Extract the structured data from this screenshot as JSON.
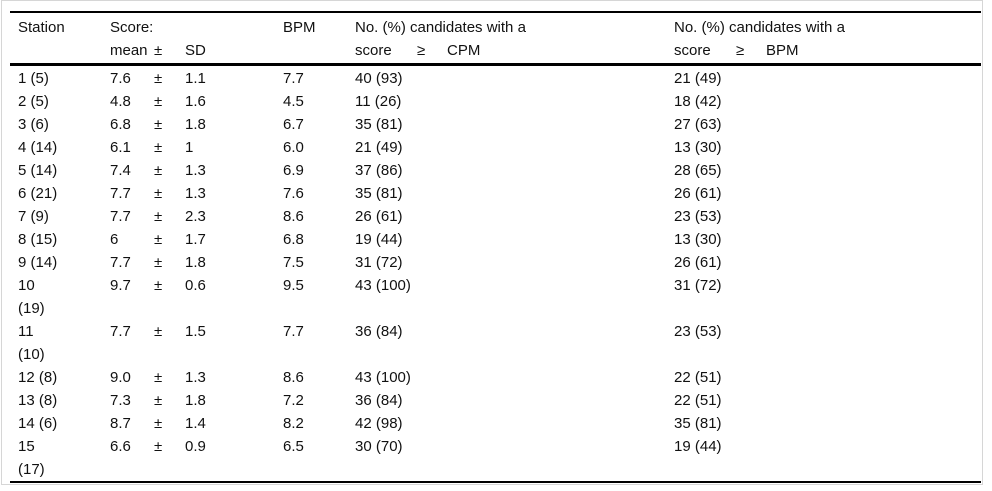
{
  "table": {
    "header": {
      "station": "Station",
      "score_line1": "Score:",
      "score_mean": "mean",
      "pm_symbol": "±",
      "score_sd": "SD",
      "bpm": "BPM",
      "count_line1": "No. (%) candidates with a",
      "count_score": "score",
      "ge_symbol": "≥",
      "cpm_ref": "CPM",
      "bpm_ref": "BPM"
    },
    "rows": [
      {
        "station": "1 (5)",
        "station_line2": "",
        "mean": "7.6",
        "sd": "1.1",
        "bpm": "7.7",
        "cpm_count": "40 (93)",
        "bpm_count": "21 (49)"
      },
      {
        "station": "2 (5)",
        "station_line2": "",
        "mean": "4.8",
        "sd": "1.6",
        "bpm": "4.5",
        "cpm_count": "11 (26)",
        "bpm_count": "18 (42)"
      },
      {
        "station": "3 (6)",
        "station_line2": "",
        "mean": "6.8",
        "sd": "1.8",
        "bpm": "6.7",
        "cpm_count": "35 (81)",
        "bpm_count": "27 (63)"
      },
      {
        "station": "4 (14)",
        "station_line2": "",
        "mean": "6.1",
        "sd": "1",
        "bpm": "6.0",
        "cpm_count": "21 (49)",
        "bpm_count": "13 (30)"
      },
      {
        "station": "5 (14)",
        "station_line2": "",
        "mean": "7.4",
        "sd": "1.3",
        "bpm": "6.9",
        "cpm_count": "37 (86)",
        "bpm_count": "28 (65)"
      },
      {
        "station": "6 (21)",
        "station_line2": "",
        "mean": "7.7",
        "sd": "1.3",
        "bpm": "7.6",
        "cpm_count": "35 (81)",
        "bpm_count": "26 (61)"
      },
      {
        "station": "7 (9)",
        "station_line2": "",
        "mean": "7.7",
        "sd": "2.3",
        "bpm": "8.6",
        "cpm_count": "26 (61)",
        "bpm_count": "23 (53)"
      },
      {
        "station": "8 (15)",
        "station_line2": "",
        "mean": "6",
        "sd": "1.7",
        "bpm": "6.8",
        "cpm_count": "19 (44)",
        "bpm_count": "13 (30)"
      },
      {
        "station": "9 (14)",
        "station_line2": "",
        "mean": "7.7",
        "sd": "1.8",
        "bpm": "7.5",
        "cpm_count": "31 (72)",
        "bpm_count": "26 (61)"
      },
      {
        "station": "10",
        "station_line2": "(19)",
        "mean": "9.7",
        "sd": "0.6",
        "bpm": "9.5",
        "cpm_count": "43 (100)",
        "bpm_count": "31 (72)"
      },
      {
        "station": "11",
        "station_line2": "(10)",
        "mean": "7.7",
        "sd": "1.5",
        "bpm": "7.7",
        "cpm_count": "36 (84)",
        "bpm_count": "23 (53)"
      },
      {
        "station": "12 (8)",
        "station_line2": "",
        "mean": "9.0",
        "sd": "1.3",
        "bpm": "8.6",
        "cpm_count": "43 (100)",
        "bpm_count": "22 (51)"
      },
      {
        "station": "13 (8)",
        "station_line2": "",
        "mean": "7.3",
        "sd": "1.8",
        "bpm": "7.2",
        "cpm_count": "36 (84)",
        "bpm_count": "22 (51)"
      },
      {
        "station": "14 (6)",
        "station_line2": "",
        "mean": "8.7",
        "sd": "1.4",
        "bpm": "8.2",
        "cpm_count": "42 (98)",
        "bpm_count": "35 (81)"
      },
      {
        "station": "15",
        "station_line2": "(17)",
        "mean": "6.6",
        "sd": "0.9",
        "bpm": "6.5",
        "cpm_count": "30 (70)",
        "bpm_count": "19 (44)"
      }
    ],
    "colors": {
      "rule": "#000000",
      "text": "#111111",
      "frame_border": "#d6d6d6",
      "background": "#ffffff"
    }
  }
}
